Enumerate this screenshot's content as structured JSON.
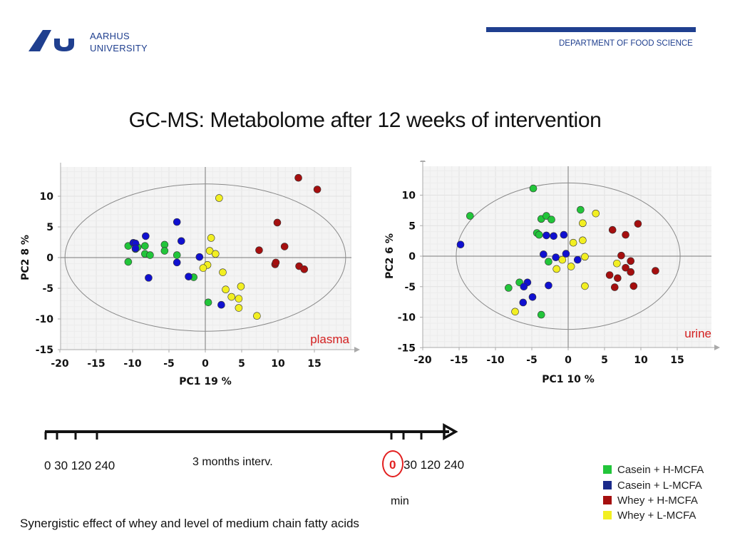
{
  "header": {
    "university_line1": "AARHUS",
    "university_line2": "UNIVERSITY",
    "department": "DEPARTMENT OF FOOD SCIENCE"
  },
  "title": "GC-MS: Metabolome after 12 weeks of intervention",
  "colors": {
    "brand": "#1f3f8f",
    "casein_h": "#22c53a",
    "casein_l": "#1010d0",
    "whey_h": "#a50f0f",
    "whey_l": "#f2ef22",
    "sample_label": "#d32020"
  },
  "chart_data": [
    {
      "type": "scatter",
      "title": "plasma",
      "xlabel": "PC1 19 %",
      "ylabel": "PC2 8 %",
      "xlim": [
        -20,
        20
      ],
      "ylim": [
        -15,
        15
      ],
      "xticks": [
        "-20",
        "-15",
        "-10",
        "-5",
        "0",
        "5",
        "10",
        "15"
      ],
      "yticks": [
        "10",
        "5",
        "0",
        "-5",
        "-10",
        "-15"
      ],
      "grid": true,
      "ellipse": {
        "rx": 19.3,
        "ry": 12
      },
      "series": [
        {
          "name": "Casein + H-MCFA",
          "color_key": "casein_h",
          "points": [
            [
              -10.6,
              1.9
            ],
            [
              -10.6,
              -0.7
            ],
            [
              -9.6,
              1.4
            ],
            [
              -9.3,
              1.7
            ],
            [
              -8.3,
              1.9
            ],
            [
              -8.3,
              0.6
            ],
            [
              -7.6,
              0.4
            ],
            [
              -5.6,
              2.1
            ],
            [
              -5.6,
              1.1
            ],
            [
              -3.9,
              0.4
            ],
            [
              -1.6,
              -3.2
            ],
            [
              0.4,
              -7.3
            ]
          ]
        },
        {
          "name": "Casein + L-MCFA",
          "color_key": "casein_l",
          "points": [
            [
              -9.9,
              2.4
            ],
            [
              -9.6,
              2.3
            ],
            [
              -9.6,
              1.5
            ],
            [
              -8.2,
              3.5
            ],
            [
              -7.8,
              -3.3
            ],
            [
              -3.9,
              5.8
            ],
            [
              -3.3,
              2.7
            ],
            [
              -3.9,
              -0.8
            ],
            [
              -2.3,
              -3.1
            ],
            [
              -0.8,
              0.1
            ],
            [
              2.2,
              -7.7
            ]
          ]
        },
        {
          "name": "Whey + H-MCFA",
          "color_key": "whey_h",
          "points": [
            [
              12.8,
              13
            ],
            [
              15.4,
              11.1
            ],
            [
              9.9,
              5.7
            ],
            [
              7.4,
              1.2
            ],
            [
              10.9,
              1.8
            ],
            [
              9.6,
              -1.1
            ],
            [
              9.7,
              -0.8
            ],
            [
              12.9,
              -1.4
            ],
            [
              13.6,
              -1.9
            ]
          ]
        },
        {
          "name": "Whey + L-MCFA",
          "color_key": "whey_l",
          "points": [
            [
              1.9,
              9.7
            ],
            [
              0.8,
              3.2
            ],
            [
              0.6,
              1.1
            ],
            [
              1.4,
              0.6
            ],
            [
              0.3,
              -1.2
            ],
            [
              -0.3,
              -1.7
            ],
            [
              2.4,
              -2.4
            ],
            [
              2.8,
              -5.2
            ],
            [
              3.6,
              -6.4
            ],
            [
              4.6,
              -6.7
            ],
            [
              4.9,
              -4.7
            ],
            [
              4.6,
              -8.2
            ],
            [
              7.1,
              -9.5
            ]
          ]
        }
      ]
    },
    {
      "type": "scatter",
      "title": "urine",
      "xlabel": "PC1 10 %",
      "ylabel": "PC2 6 %",
      "xlim": [
        -20,
        20
      ],
      "ylim": [
        -15,
        15
      ],
      "xticks": [
        "-20",
        "-15",
        "-10",
        "-5",
        "0",
        "5",
        "10",
        "15"
      ],
      "yticks": [
        "10",
        "5",
        "0",
        "-5",
        "-10",
        "-15"
      ],
      "grid": true,
      "ellipse": {
        "rx": 15.4,
        "ry": 12
      },
      "series": [
        {
          "name": "Casein + H-MCFA",
          "color_key": "casein_h",
          "points": [
            [
              -4.8,
              11.1
            ],
            [
              -13.5,
              6.6
            ],
            [
              -3.7,
              6.1
            ],
            [
              -3.0,
              6.6
            ],
            [
              -2.3,
              6.0
            ],
            [
              -4.3,
              3.8
            ],
            [
              -4.0,
              3.5
            ],
            [
              -2.7,
              -0.9
            ],
            [
              1.7,
              7.6
            ],
            [
              -6.7,
              -4.3
            ],
            [
              -8.2,
              -5.2
            ],
            [
              -3.7,
              -9.6
            ]
          ]
        },
        {
          "name": "Casein + L-MCFA",
          "color_key": "casein_l",
          "points": [
            [
              -14.8,
              1.9
            ],
            [
              -3.0,
              3.4
            ],
            [
              -2.0,
              3.3
            ],
            [
              -0.6,
              3.5
            ],
            [
              -3.4,
              0.3
            ],
            [
              -1.7,
              -0.2
            ],
            [
              -0.3,
              0.4
            ],
            [
              1.3,
              -0.6
            ],
            [
              -5.6,
              -4.3
            ],
            [
              -6.1,
              -5.0
            ],
            [
              -4.9,
              -6.7
            ],
            [
              -6.2,
              -7.6
            ],
            [
              -2.7,
              -4.8
            ]
          ]
        },
        {
          "name": "Whey + H-MCFA",
          "color_key": "whey_h",
          "points": [
            [
              6.1,
              4.3
            ],
            [
              7.9,
              3.5
            ],
            [
              9.6,
              5.3
            ],
            [
              7.3,
              0.1
            ],
            [
              8.6,
              -0.8
            ],
            [
              7.9,
              -1.9
            ],
            [
              8.6,
              -2.6
            ],
            [
              5.7,
              -3.1
            ],
            [
              6.8,
              -3.6
            ],
            [
              12.0,
              -2.4
            ],
            [
              6.4,
              -5.1
            ],
            [
              9.0,
              -4.9
            ]
          ]
        },
        {
          "name": "Whey + L-MCFA",
          "color_key": "whey_l",
          "points": [
            [
              3.8,
              7.0
            ],
            [
              2.0,
              5.4
            ],
            [
              0.7,
              2.2
            ],
            [
              2.0,
              2.6
            ],
            [
              2.3,
              -0.1
            ],
            [
              0.4,
              -1.7
            ],
            [
              -0.8,
              -0.6
            ],
            [
              -1.6,
              -2.1
            ],
            [
              6.7,
              -1.2
            ],
            [
              2.3,
              -4.9
            ],
            [
              -7.3,
              -9.1
            ]
          ]
        }
      ]
    }
  ],
  "timeline": {
    "left_times": "0 30 120 240",
    "middle_label": "3 months interv.",
    "right_zero": "0",
    "right_times": "30 120 240",
    "unit": "min"
  },
  "legend": [
    {
      "label": "Casein + H-MCFA",
      "color": "#22c53a"
    },
    {
      "label": "Casein + L-MCFA",
      "color": "#1a2a8a"
    },
    {
      "label": "Whey + H-MCFA",
      "color": "#a50f0f"
    },
    {
      "label": "Whey + L-MCFA",
      "color": "#f2ef22"
    }
  ],
  "caption": "Synergistic effect of whey and level of medium chain fatty acids"
}
